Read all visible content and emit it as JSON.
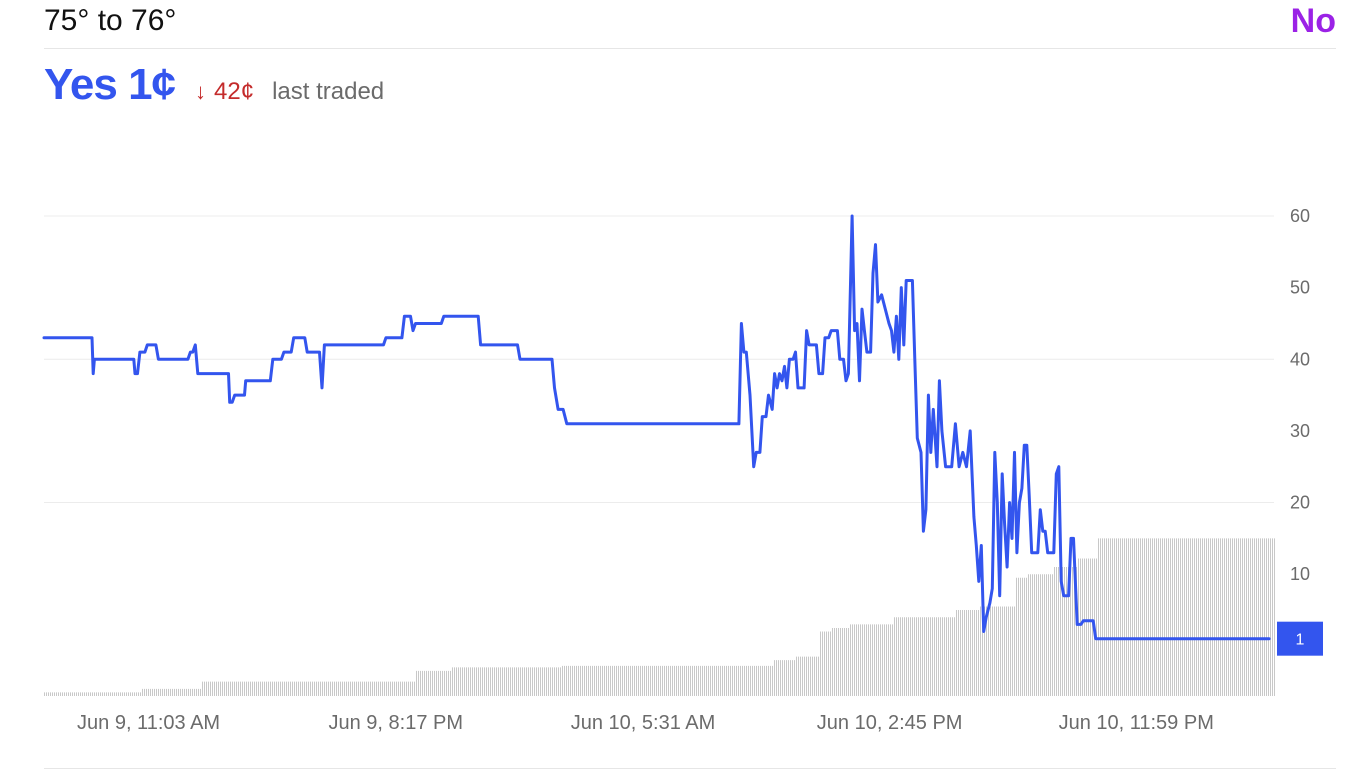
{
  "market": {
    "title": "75° to 76°",
    "no_label": "No",
    "yes_label": "Yes 1¢",
    "change_arrow": "↓",
    "change_value": "42¢",
    "last_traded_label": "last traded"
  },
  "colors": {
    "yes": "#3355ee",
    "no": "#9b22e6",
    "change": "#c42b2b",
    "volume": "#c8c8c8",
    "grid": "#ececec"
  },
  "chart_data": {
    "type": "line",
    "title": "",
    "xlabel": "",
    "ylabel": "",
    "ylim": [
      -7,
      66
    ],
    "yticks": [
      60,
      50,
      40,
      30,
      20,
      10
    ],
    "gridlines": [
      60,
      40,
      20
    ],
    "xlim": [
      0,
      1
    ],
    "xticks": [
      {
        "x": 0.085,
        "label": "Jun 9, 11:03 AM"
      },
      {
        "x": 0.286,
        "label": "Jun 9, 8:17 PM"
      },
      {
        "x": 0.487,
        "label": "Jun 10, 5:31 AM"
      },
      {
        "x": 0.6875,
        "label": "Jun 10, 2:45 PM"
      },
      {
        "x": 0.888,
        "label": "Jun 10, 11:59 PM"
      }
    ],
    "current_value_label": "1",
    "series": [
      {
        "name": "Yes",
        "values": [
          [
            0.0,
            43
          ],
          [
            0.039,
            43
          ],
          [
            0.04,
            38
          ],
          [
            0.041,
            40
          ],
          [
            0.073,
            40
          ],
          [
            0.074,
            38
          ],
          [
            0.076,
            38
          ],
          [
            0.078,
            41
          ],
          [
            0.082,
            41
          ],
          [
            0.084,
            42
          ],
          [
            0.091,
            42
          ],
          [
            0.093,
            40
          ],
          [
            0.117,
            40
          ],
          [
            0.119,
            41
          ],
          [
            0.121,
            41
          ],
          [
            0.123,
            42
          ],
          [
            0.125,
            38
          ],
          [
            0.127,
            38
          ],
          [
            0.15,
            38
          ],
          [
            0.151,
            34
          ],
          [
            0.153,
            34
          ],
          [
            0.155,
            35
          ],
          [
            0.163,
            35
          ],
          [
            0.164,
            37
          ],
          [
            0.184,
            37
          ],
          [
            0.186,
            40
          ],
          [
            0.193,
            40
          ],
          [
            0.195,
            41
          ],
          [
            0.201,
            41
          ],
          [
            0.203,
            43
          ],
          [
            0.212,
            43
          ],
          [
            0.214,
            41
          ],
          [
            0.224,
            41
          ],
          [
            0.226,
            36
          ],
          [
            0.228,
            42
          ],
          [
            0.276,
            42
          ],
          [
            0.278,
            43
          ],
          [
            0.291,
            43
          ],
          [
            0.293,
            46
          ],
          [
            0.298,
            46
          ],
          [
            0.3,
            44
          ],
          [
            0.302,
            45
          ],
          [
            0.323,
            45
          ],
          [
            0.325,
            46
          ],
          [
            0.353,
            46
          ],
          [
            0.355,
            42
          ],
          [
            0.385,
            42
          ],
          [
            0.387,
            40
          ],
          [
            0.413,
            40
          ],
          [
            0.415,
            36
          ],
          [
            0.418,
            33
          ],
          [
            0.422,
            33
          ],
          [
            0.425,
            31
          ],
          [
            0.565,
            31
          ],
          [
            0.567,
            45
          ],
          [
            0.569,
            41
          ],
          [
            0.571,
            41
          ],
          [
            0.574,
            35
          ],
          [
            0.577,
            25
          ],
          [
            0.579,
            27
          ],
          [
            0.582,
            27
          ],
          [
            0.584,
            32
          ],
          [
            0.587,
            32
          ],
          [
            0.589,
            35
          ],
          [
            0.592,
            33
          ],
          [
            0.594,
            38
          ],
          [
            0.596,
            36
          ],
          [
            0.598,
            38
          ],
          [
            0.6,
            37
          ],
          [
            0.602,
            39
          ],
          [
            0.604,
            36
          ],
          [
            0.606,
            40
          ],
          [
            0.609,
            40
          ],
          [
            0.611,
            41
          ],
          [
            0.613,
            36
          ],
          [
            0.618,
            36
          ],
          [
            0.62,
            44
          ],
          [
            0.622,
            42
          ],
          [
            0.628,
            42
          ],
          [
            0.63,
            38
          ],
          [
            0.633,
            38
          ],
          [
            0.635,
            43
          ],
          [
            0.638,
            43
          ],
          [
            0.64,
            44
          ],
          [
            0.645,
            44
          ],
          [
            0.647,
            40
          ],
          [
            0.65,
            40
          ],
          [
            0.652,
            37
          ],
          [
            0.654,
            38
          ],
          [
            0.657,
            60
          ],
          [
            0.659,
            44
          ],
          [
            0.661,
            45
          ],
          [
            0.663,
            37
          ],
          [
            0.665,
            47
          ],
          [
            0.667,
            44
          ],
          [
            0.669,
            41
          ],
          [
            0.672,
            41
          ],
          [
            0.674,
            52
          ],
          [
            0.676,
            56
          ],
          [
            0.678,
            48
          ],
          [
            0.681,
            49
          ],
          [
            0.684,
            47
          ],
          [
            0.687,
            45
          ],
          [
            0.689,
            44
          ],
          [
            0.691,
            41
          ],
          [
            0.693,
            46
          ],
          [
            0.695,
            40
          ],
          [
            0.697,
            50
          ],
          [
            0.699,
            42
          ],
          [
            0.701,
            51
          ],
          [
            0.706,
            51
          ],
          [
            0.708,
            40
          ],
          [
            0.71,
            29
          ],
          [
            0.713,
            27
          ],
          [
            0.715,
            16
          ],
          [
            0.717,
            19
          ],
          [
            0.719,
            35
          ],
          [
            0.721,
            27
          ],
          [
            0.723,
            33
          ],
          [
            0.726,
            25
          ],
          [
            0.728,
            37
          ],
          [
            0.73,
            30
          ],
          [
            0.733,
            25
          ],
          [
            0.738,
            25
          ],
          [
            0.741,
            31
          ],
          [
            0.744,
            25
          ],
          [
            0.747,
            27
          ],
          [
            0.75,
            25
          ],
          [
            0.753,
            30
          ],
          [
            0.756,
            18
          ],
          [
            0.758,
            14
          ],
          [
            0.76,
            9
          ],
          [
            0.762,
            14
          ],
          [
            0.764,
            2
          ],
          [
            0.766,
            4
          ],
          [
            0.769,
            6
          ],
          [
            0.771,
            8
          ],
          [
            0.773,
            27
          ],
          [
            0.775,
            20
          ],
          [
            0.777,
            7
          ],
          [
            0.779,
            24
          ],
          [
            0.781,
            17
          ],
          [
            0.783,
            11
          ],
          [
            0.785,
            20
          ],
          [
            0.787,
            15
          ],
          [
            0.789,
            27
          ],
          [
            0.791,
            13
          ],
          [
            0.793,
            20
          ],
          [
            0.795,
            22
          ],
          [
            0.797,
            28
          ],
          [
            0.799,
            28
          ],
          [
            0.801,
            21
          ],
          [
            0.803,
            13
          ],
          [
            0.808,
            13
          ],
          [
            0.81,
            19
          ],
          [
            0.812,
            16
          ],
          [
            0.814,
            16
          ],
          [
            0.816,
            13
          ],
          [
            0.821,
            13
          ],
          [
            0.823,
            24
          ],
          [
            0.825,
            25
          ],
          [
            0.827,
            9
          ],
          [
            0.829,
            7
          ],
          [
            0.833,
            7
          ],
          [
            0.835,
            15
          ],
          [
            0.837,
            15
          ],
          [
            0.84,
            3
          ],
          [
            0.843,
            3
          ],
          [
            0.845,
            3.5
          ],
          [
            0.853,
            3.5
          ],
          [
            0.855,
            1
          ],
          [
            0.996,
            1
          ]
        ]
      }
    ],
    "volume": {
      "name": "Volume",
      "values": [
        [
          0.0,
          0.5
        ],
        [
          0.078,
          0.5
        ],
        [
          0.079,
          1.0
        ],
        [
          0.127,
          1.0
        ],
        [
          0.128,
          2.0
        ],
        [
          0.3,
          2.0
        ],
        [
          0.301,
          3.5
        ],
        [
          0.33,
          3.5
        ],
        [
          0.331,
          4.0
        ],
        [
          0.42,
          4.0
        ],
        [
          0.421,
          4.2
        ],
        [
          0.59,
          4.2
        ],
        [
          0.592,
          5.0
        ],
        [
          0.61,
          5.5
        ],
        [
          0.63,
          9.0
        ],
        [
          0.64,
          9.5
        ],
        [
          0.655,
          10.0
        ],
        [
          0.69,
          11.0
        ],
        [
          0.74,
          12.0
        ],
        [
          0.76,
          12.5
        ],
        [
          0.79,
          16.5
        ],
        [
          0.8,
          17.0
        ],
        [
          0.82,
          18.0
        ],
        [
          0.84,
          19.2
        ],
        [
          0.855,
          19.2
        ],
        [
          0.856,
          22.0
        ],
        [
          1.0,
          22.0
        ]
      ]
    }
  }
}
